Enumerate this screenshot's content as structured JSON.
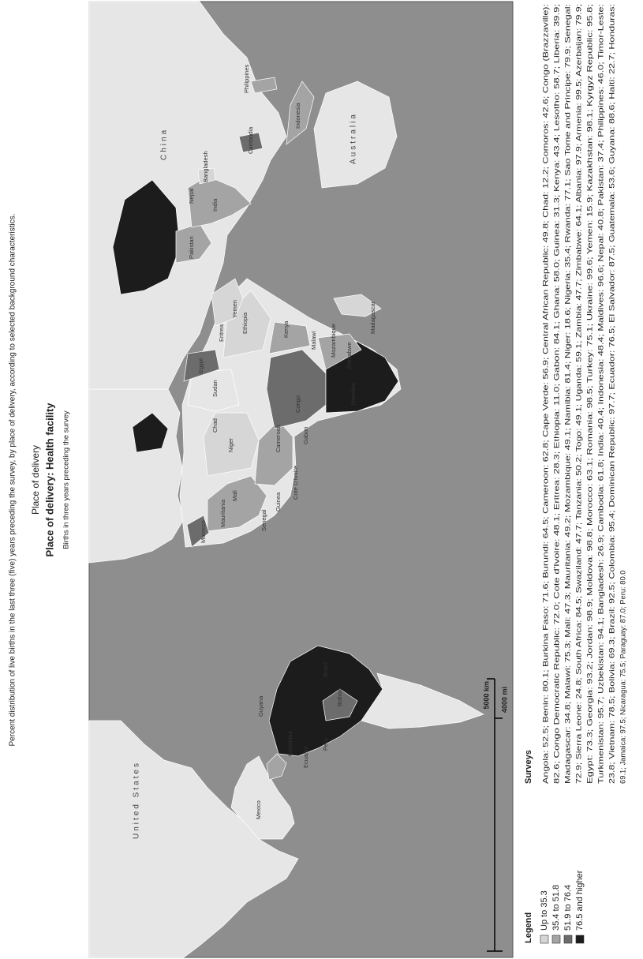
{
  "caption": "Percent distribution of live births in the last three (five) years preceding the survey, by place of delivery, according to selected background characteristics.",
  "title": "Place of delivery",
  "subtitle": "Place of delivery: Health facility",
  "note": "Births in three years preceding the survey",
  "legend": {
    "title": "Legend",
    "items": [
      {
        "label": "Up to 35.3",
        "color": "#d6d6d6"
      },
      {
        "label": "35.4 to 51.8",
        "color": "#a4a4a4"
      },
      {
        "label": "51.9 to 76.4",
        "color": "#6c6c6c"
      },
      {
        "label": "76.5 and higher",
        "color": "#1c1c1c"
      }
    ]
  },
  "scale": {
    "km": "5000 km",
    "mi": "4000 mi"
  },
  "map_labels": [
    "United States",
    "Mexico",
    "Colombia",
    "Ecuador",
    "Peru",
    "Bolivia",
    "Brazil",
    "Guyana",
    "Morocco",
    "Mauritania",
    "Mali",
    "Niger",
    "Chad",
    "Sudan",
    "Egypt",
    "Ethiopia",
    "Eritrea",
    "Senegal",
    "Guinea",
    "Cote D'Ivoire",
    "Cameroon",
    "Gabon",
    "Congo",
    "Namibia",
    "Zimbabwe",
    "Madagascar",
    "Mozambique",
    "Malawi",
    "Kenya",
    "Yemen",
    "Pakistan",
    "India",
    "Nepal",
    "Bangladesh",
    "China",
    "Cambodia",
    "Philippines",
    "Indonesia",
    "Australia"
  ],
  "surveys": {
    "title": "Surveys",
    "lines": [
      "Angola: 52.5; Benin: 80.1; Burkina Faso: 71.6; Burundi: 64.5; Cameroon: 62.8; Cape Verde: 56.9; Central African Republic: 49.8; Chad: 12.2; Comoros: 42.6; Congo (Brazzaville):",
      "82.6; Congo Democratic Republic: 72.0; Cote d'Ivoire: 48.1; Eritrea: 28.3; Ethiopia: 11.0; Gabon: 84.1; Ghana: 58.0; Guinea: 31.3; Kenya: 43.4; Lesotho: 58.7; Liberia: 39.9;",
      "Madagascar: 34.8; Malawi: 75.3; Mali: 47.3; Mauritania: 49.2; Mozambique: 49.1; Namibia: 81.4; Niger: 18.6; Nigeria: 35.4; Rwanda: 77.1; Sao Tome and Principe: 79.9; Senegal:",
      "72.9; Sierra Leone: 24.8; South Africa: 84.5; Swaziland: 47.7; Tanzania: 50.2; Togo: 49.1; Uganda: 59.1; Zambia: 47.7; Zimbabwe: 64.1; Albania: 97.9; Armenia: 99.5; Azerbaijan: 79.9;",
      "Egypt: 73.3; Georgia: 93.2; Jordan: 98.9; Moldova: 98.8; Morocco: 63.1; Romania: 98.5; Turkey: 75.1; Ukraine: 99.6; Yemen: 15.9; Kazakhstan: 98.1; Kyrgyz Republic: 95.8;",
      "Turkmenistan: 95.7; Uzbekistan: 94.1; Bangladesh: 26.9; Cambodia: 61.8; India: 40.4; Indonesia: 48.4; Maldives: 96.6; Nepal: 40.8; Pakistan: 37.4; Philippines: 46.0; Timor-Leste:",
      "23.8; Vietnam: 78.5; Bolivia: 69.3; Brazil: 92.5; Colombia: 95.4; Dominican Republic: 97.7; Ecuador: 76.5; El Salvador: 87.5; Guatemala: 53.6; Guyana: 88.6; Haiti: 22.7; Honduras:",
      "69.1; Jamaica: 97.5; Nicaragua: 75.5; Paraguay: 87.0; Peru: 80.0"
    ]
  }
}
